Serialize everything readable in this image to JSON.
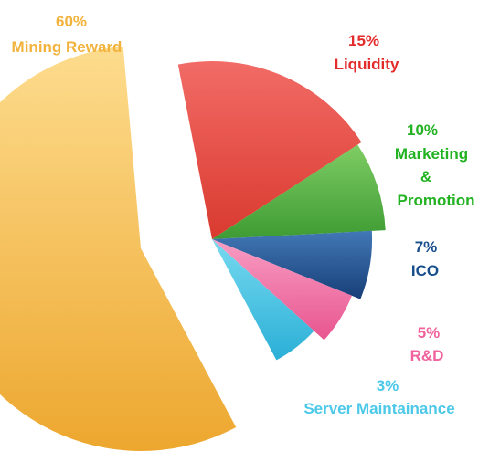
{
  "chart_data": {
    "type": "pie",
    "title": "",
    "slices": [
      {
        "key": "mining",
        "percent_label": "60%",
        "label": "Mining Reward",
        "value": 60,
        "color": "#F4B23E",
        "highlight": "#FDD98A"
      },
      {
        "key": "liquidity",
        "percent_label": "15%",
        "label": "Liquidity",
        "value": 15,
        "color": "#E0403A",
        "highlight": "#F26A63"
      },
      {
        "key": "marketing",
        "percent_label": "10%",
        "label": "Marketing & Promotion",
        "label_lines": [
          "Marketing",
          "&",
          "Promotion"
        ],
        "value": 10,
        "color": "#4FAF3E",
        "highlight": "#7CCB63"
      },
      {
        "key": "ico",
        "percent_label": "7%",
        "label": "ICO",
        "value": 7,
        "color": "#1F5796",
        "highlight": "#3E78B8"
      },
      {
        "key": "rd",
        "percent_label": "5%",
        "label": "R&D",
        "value": 5,
        "color": "#EF6FA4",
        "highlight": "#F79CC2"
      },
      {
        "key": "server",
        "percent_label": "3%",
        "label": "Server Maintainance",
        "value": 3,
        "color": "#33BDE0",
        "highlight": "#6FD6EE"
      }
    ],
    "label_colors": {
      "mining": "#F2B33D",
      "liquidity": "#E32B2B",
      "marketing": "#22B222",
      "ico": "#184E8C",
      "rd": "#F0639C",
      "server": "#4CC8E8"
    }
  }
}
